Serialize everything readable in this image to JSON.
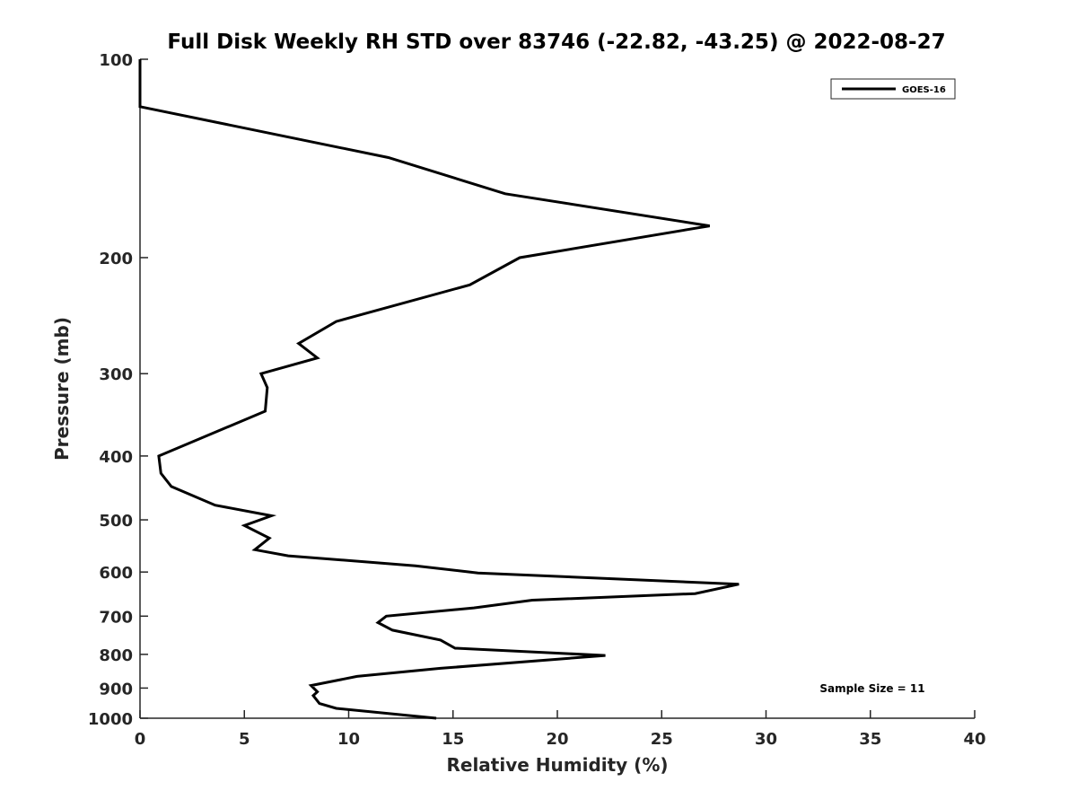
{
  "chart_data": {
    "type": "line",
    "title": "Full Disk Weekly RH STD over 83746 (-22.82, -43.25) @ 2022-08-27",
    "xlabel": "Relative Humidity (%)",
    "ylabel": "Pressure (mb)",
    "xlim": [
      0,
      40
    ],
    "ylim": [
      100,
      1000
    ],
    "y_scale": "log",
    "y_reversed": true,
    "xticks": [
      0,
      5,
      10,
      15,
      20,
      25,
      30,
      35,
      40
    ],
    "yticks": [
      100,
      200,
      300,
      400,
      500,
      600,
      700,
      800,
      900,
      1000
    ],
    "grid": false,
    "legend_position": "top-right",
    "annotation": "Sample Size = 11",
    "series": [
      {
        "name": "GOES-16",
        "color": "#000000",
        "x": [
          0,
          0,
          0,
          11.9,
          17.5,
          27.3,
          18.2,
          15.8,
          9.4,
          7.6,
          8.5,
          5.8,
          6.1,
          6.0,
          0.9,
          1.0,
          1.5,
          3.6,
          6.3,
          5.0,
          6.2,
          5.5,
          7.1,
          13.2,
          16.2,
          28.7,
          26.6,
          18.8,
          16.0,
          11.8,
          11.4,
          12.1,
          14.4,
          15.1,
          22.3,
          14.4,
          10.4,
          8.2,
          8.5,
          8.3,
          8.6,
          9.4,
          14.2
        ],
        "y": [
          100,
          102,
          118,
          141,
          160,
          179,
          200,
          220,
          250,
          270,
          284,
          300,
          315,
          342,
          400,
          425,
          445,
          475,
          493,
          510,
          533,
          555,
          567,
          587,
          602,
          626,
          647,
          662,
          680,
          700,
          716,
          735,
          761,
          783,
          803,
          840,
          864,
          892,
          912,
          924,
          950,
          966,
          1000
        ]
      }
    ]
  }
}
